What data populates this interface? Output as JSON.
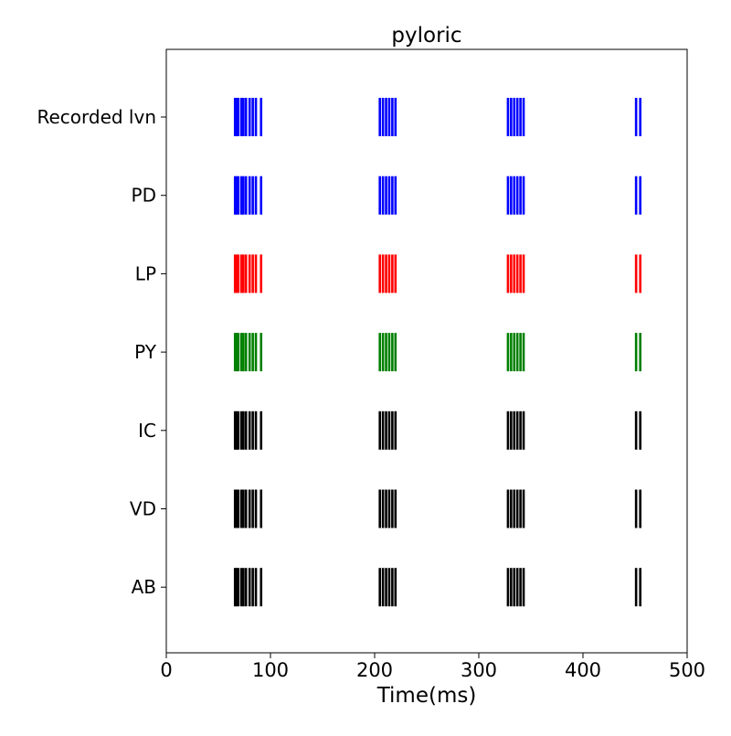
{
  "chart_data": {
    "type": "raster",
    "title": "pyloric",
    "xlabel": "Time(ms)",
    "ylabel": "",
    "xlim": [
      0,
      500
    ],
    "x_ticks": [
      0,
      100,
      200,
      300,
      400,
      500
    ],
    "grid": false,
    "rows": [
      {
        "label": "Recorded lvn",
        "color": "#0000ff"
      },
      {
        "label": "PD",
        "color": "#0000ff"
      },
      {
        "label": "LP",
        "color": "#ff0000"
      },
      {
        "label": "PY",
        "color": "#008000"
      },
      {
        "label": "IC",
        "color": "#000000"
      },
      {
        "label": "VD",
        "color": "#000000"
      },
      {
        "label": "AB",
        "color": "#000000"
      }
    ],
    "spike_times": [
      66,
      67.5,
      69,
      72,
      74,
      76.5,
      80,
      83,
      86,
      91,
      205,
      208,
      211,
      214,
      217,
      220,
      328,
      331,
      334,
      337,
      340,
      343,
      451,
      455
    ]
  }
}
